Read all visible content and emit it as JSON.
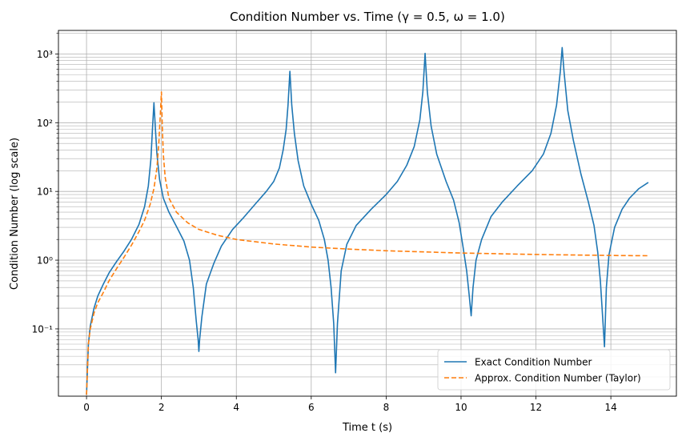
{
  "chart_data": {
    "type": "line",
    "title": "Condition Number vs. Time (γ = 0.5, ω = 1.0)",
    "xlabel": "Time t (s)",
    "ylabel": "Condition Number (log scale)",
    "xlim": [
      -0.75,
      15.75
    ],
    "ylim": [
      0.0105,
      2200
    ],
    "yscale": "log",
    "grid": true,
    "grid_minor_y": true,
    "legend_position": "lower-right",
    "x_ticks": [
      0,
      2,
      4,
      6,
      8,
      10,
      12,
      14
    ],
    "x_tick_labels": [
      "0",
      "2",
      "4",
      "6",
      "8",
      "10",
      "12",
      "14"
    ],
    "y_ticks": [
      0.1,
      1,
      10,
      100,
      1000
    ],
    "y_tick_labels": [
      "10⁻¹",
      "10⁰",
      "10¹",
      "10²",
      "10³"
    ],
    "series": [
      {
        "name": "Exact Condition Number",
        "color": "#1f77b4",
        "style": "solid",
        "points": [
          [
            0.0,
            0.011
          ],
          [
            0.05,
            0.06
          ],
          [
            0.1,
            0.11
          ],
          [
            0.2,
            0.2
          ],
          [
            0.3,
            0.3
          ],
          [
            0.45,
            0.45
          ],
          [
            0.6,
            0.65
          ],
          [
            0.8,
            0.95
          ],
          [
            1.0,
            1.35
          ],
          [
            1.2,
            2.0
          ],
          [
            1.4,
            3.3
          ],
          [
            1.55,
            6.0
          ],
          [
            1.65,
            12
          ],
          [
            1.72,
            30
          ],
          [
            1.76,
            80
          ],
          [
            1.8,
            195
          ],
          [
            1.84,
            80
          ],
          [
            1.88,
            35
          ],
          [
            1.95,
            15
          ],
          [
            2.05,
            8
          ],
          [
            2.2,
            5
          ],
          [
            2.4,
            3.1
          ],
          [
            2.6,
            1.9
          ],
          [
            2.75,
            1.0
          ],
          [
            2.85,
            0.4
          ],
          [
            2.93,
            0.13
          ],
          [
            2.98,
            0.07
          ],
          [
            3.0,
            0.047
          ],
          [
            3.02,
            0.07
          ],
          [
            3.08,
            0.15
          ],
          [
            3.2,
            0.45
          ],
          [
            3.4,
            0.9
          ],
          [
            3.6,
            1.6
          ],
          [
            3.9,
            2.8
          ],
          [
            4.2,
            4.2
          ],
          [
            4.5,
            6.5
          ],
          [
            4.8,
            10
          ],
          [
            5.0,
            14
          ],
          [
            5.15,
            22
          ],
          [
            5.25,
            40
          ],
          [
            5.33,
            80
          ],
          [
            5.38,
            180
          ],
          [
            5.43,
            560
          ],
          [
            5.48,
            180
          ],
          [
            5.55,
            70
          ],
          [
            5.65,
            28
          ],
          [
            5.8,
            12
          ],
          [
            6.0,
            6.5
          ],
          [
            6.2,
            3.8
          ],
          [
            6.35,
            2.0
          ],
          [
            6.45,
            1.0
          ],
          [
            6.53,
            0.4
          ],
          [
            6.6,
            0.12
          ],
          [
            6.65,
            0.023
          ],
          [
            6.7,
            0.12
          ],
          [
            6.8,
            0.7
          ],
          [
            6.95,
            1.7
          ],
          [
            7.2,
            3.2
          ],
          [
            7.6,
            5.5
          ],
          [
            8.0,
            9
          ],
          [
            8.3,
            14
          ],
          [
            8.55,
            24
          ],
          [
            8.75,
            45
          ],
          [
            8.9,
            110
          ],
          [
            8.98,
            280
          ],
          [
            9.04,
            1020
          ],
          [
            9.1,
            280
          ],
          [
            9.2,
            90
          ],
          [
            9.35,
            35
          ],
          [
            9.6,
            14
          ],
          [
            9.8,
            7.5
          ],
          [
            9.95,
            3.5
          ],
          [
            10.05,
            1.6
          ],
          [
            10.15,
            0.7
          ],
          [
            10.22,
            0.3
          ],
          [
            10.27,
            0.155
          ],
          [
            10.32,
            0.4
          ],
          [
            10.4,
            1.0
          ],
          [
            10.55,
            2.0
          ],
          [
            10.8,
            4.3
          ],
          [
            11.1,
            7
          ],
          [
            11.5,
            12
          ],
          [
            11.9,
            20
          ],
          [
            12.2,
            35
          ],
          [
            12.4,
            70
          ],
          [
            12.55,
            180
          ],
          [
            12.65,
            550
          ],
          [
            12.7,
            1240
          ],
          [
            12.75,
            550
          ],
          [
            12.85,
            150
          ],
          [
            13.0,
            55
          ],
          [
            13.2,
            18
          ],
          [
            13.4,
            7
          ],
          [
            13.55,
            3.2
          ],
          [
            13.65,
            1.3
          ],
          [
            13.72,
            0.5
          ],
          [
            13.78,
            0.15
          ],
          [
            13.83,
            0.055
          ],
          [
            13.88,
            0.4
          ],
          [
            13.95,
            1.2
          ],
          [
            14.1,
            3.0
          ],
          [
            14.3,
            5.5
          ],
          [
            14.5,
            8
          ],
          [
            14.75,
            11
          ],
          [
            15.0,
            13.5
          ]
        ]
      },
      {
        "name": "Approx. Condition Number (Taylor)",
        "color": "#ff7f0e",
        "style": "dashed",
        "points": [
          [
            0.0,
            0.011
          ],
          [
            0.05,
            0.06
          ],
          [
            0.1,
            0.1
          ],
          [
            0.2,
            0.17
          ],
          [
            0.3,
            0.24
          ],
          [
            0.45,
            0.34
          ],
          [
            0.6,
            0.5
          ],
          [
            0.8,
            0.75
          ],
          [
            1.0,
            1.1
          ],
          [
            1.2,
            1.65
          ],
          [
            1.4,
            2.6
          ],
          [
            1.55,
            3.8
          ],
          [
            1.7,
            6.5
          ],
          [
            1.8,
            11
          ],
          [
            1.88,
            22
          ],
          [
            1.93,
            50
          ],
          [
            1.97,
            130
          ],
          [
            2.0,
            280
          ],
          [
            2.02,
            100
          ],
          [
            2.05,
            35
          ],
          [
            2.1,
            16
          ],
          [
            2.2,
            8
          ],
          [
            2.4,
            5
          ],
          [
            2.7,
            3.5
          ],
          [
            3.0,
            2.8
          ],
          [
            3.5,
            2.3
          ],
          [
            4.0,
            2.0
          ],
          [
            5.0,
            1.72
          ],
          [
            6.0,
            1.55
          ],
          [
            7.0,
            1.45
          ],
          [
            8.0,
            1.37
          ],
          [
            9.0,
            1.32
          ],
          [
            10.0,
            1.27
          ],
          [
            11.0,
            1.24
          ],
          [
            12.0,
            1.21
          ],
          [
            13.0,
            1.19
          ],
          [
            14.0,
            1.17
          ],
          [
            15.0,
            1.16
          ]
        ]
      }
    ]
  }
}
